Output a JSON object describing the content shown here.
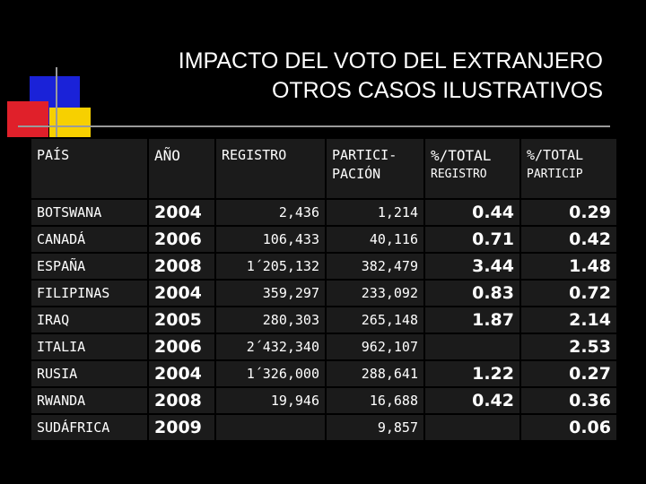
{
  "title": {
    "line1": "IMPACTO DEL VOTO DEL EXTRANJERO",
    "line2": "OTROS CASOS ILUSTRATIVOS"
  },
  "table": {
    "headers": {
      "pais": "PAÍS",
      "anio": "AÑO",
      "registro": "REGISTRO",
      "participacion_1": "PARTICI-",
      "participacion_2": "PACIÓN",
      "pct_total_1": "%/TOTAL",
      "pct_registro": "REGISTRO",
      "pct_total_2": "%/TOTAL",
      "pct_particip": "PARTICIP"
    },
    "rows": [
      {
        "pais": "BOTSWANA",
        "anio": "2004",
        "registro": "2,436",
        "participacion": "1,214",
        "pct_registro": "0.44",
        "pct_particip": "0.29"
      },
      {
        "pais": "CANADÁ",
        "anio": "2006",
        "registro": "106,433",
        "participacion": "40,116",
        "pct_registro": "0.71",
        "pct_particip": "0.42"
      },
      {
        "pais": "ESPAÑA",
        "anio": "2008",
        "registro": "1´205,132",
        "participacion": "382,479",
        "pct_registro": "3.44",
        "pct_particip": "1.48"
      },
      {
        "pais": "FILIPINAS",
        "anio": "2004",
        "registro": "359,297",
        "participacion": "233,092",
        "pct_registro": "0.83",
        "pct_particip": "0.72"
      },
      {
        "pais": "IRAQ",
        "anio": "2005",
        "registro": "280,303",
        "participacion": "265,148",
        "pct_registro": "1.87",
        "pct_particip": "2.14"
      },
      {
        "pais": "ITALIA",
        "anio": "2006",
        "registro": "2´432,340",
        "participacion": "962,107",
        "pct_registro": "",
        "pct_particip": "2.53"
      },
      {
        "pais": "RUSIA",
        "anio": "2004",
        "registro": "1´326,000",
        "participacion": "288,641",
        "pct_registro": "1.22",
        "pct_particip": "0.27"
      },
      {
        "pais": "RWANDA",
        "anio": "2008",
        "registro": "19,946",
        "participacion": "16,688",
        "pct_registro": "0.42",
        "pct_particip": "0.36"
      },
      {
        "pais": "SUDÁFRICA",
        "anio": "2009",
        "registro": "",
        "participacion": "9,857",
        "pct_registro": "",
        "pct_particip": "0.06"
      }
    ]
  },
  "colors": {
    "background": "#000000",
    "cell": "#1b1b1b",
    "deco_blue": "#1a22d8",
    "deco_yellow": "#f7d000",
    "deco_red": "#e0202a"
  }
}
